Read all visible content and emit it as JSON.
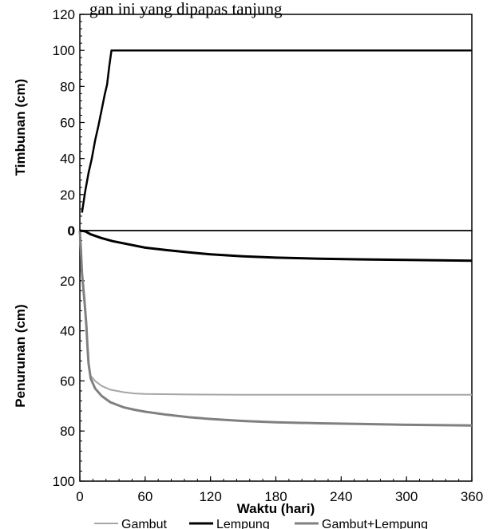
{
  "caption_fragment": "gan ini yang dipapas tanjung",
  "chart_data": [
    {
      "type": "line",
      "panel": "top",
      "ylabel": "Timbunan (cm)",
      "ylim": [
        0,
        120
      ],
      "yticks": [
        0,
        20,
        40,
        60,
        80,
        100,
        120
      ],
      "xlim": [
        0,
        360
      ],
      "series": [
        {
          "key": "timbunan",
          "color": "#000000",
          "x": [
            2,
            5,
            8,
            11,
            14,
            17,
            20,
            23,
            25,
            27,
            29,
            60,
            120,
            180,
            240,
            300,
            360
          ],
          "y": [
            10,
            22,
            32,
            40,
            50,
            58,
            67,
            76,
            81,
            91,
            100,
            100,
            100,
            100,
            100,
            100,
            100
          ]
        }
      ]
    },
    {
      "type": "line",
      "panel": "bottom",
      "ylabel": "Penurunan (cm)",
      "xlabel": "Waktu (hari)",
      "ylim": [
        0,
        100
      ],
      "y_inverted": true,
      "yticks": [
        0,
        20,
        40,
        60,
        80,
        100
      ],
      "xlim": [
        0,
        360
      ],
      "xticks": [
        0,
        60,
        120,
        180,
        240,
        300,
        360
      ],
      "legend": "bottom",
      "series": [
        {
          "name": "Gambut",
          "color": "#a6a6a6",
          "x": [
            0,
            1,
            2,
            3,
            4,
            5,
            6,
            7,
            8,
            10,
            14,
            20,
            28,
            40,
            50,
            60,
            100,
            150,
            200,
            300,
            360
          ],
          "y": [
            0,
            8,
            17,
            22,
            27,
            32,
            38,
            46,
            53,
            58,
            60,
            62,
            63.5,
            64.5,
            65,
            65.2,
            65.4,
            65.5,
            65.5,
            65.5,
            65.5
          ]
        },
        {
          "name": "Lempung",
          "color": "#000000",
          "x": [
            0,
            5,
            10,
            20,
            30,
            45,
            60,
            80,
            100,
            120,
            150,
            180,
            220,
            260,
            300,
            360
          ],
          "y": [
            0,
            0.3,
            1.5,
            3,
            4.2,
            5.5,
            6.8,
            7.8,
            8.7,
            9.5,
            10.3,
            10.8,
            11.2,
            11.5,
            11.7,
            12
          ]
        },
        {
          "name": "Gambut+Lempung",
          "color": "#808080",
          "x": [
            0,
            1,
            2,
            3,
            4,
            5,
            6,
            7,
            8,
            10,
            14,
            20,
            28,
            40,
            50,
            60,
            80,
            100,
            120,
            150,
            180,
            220,
            260,
            300,
            360
          ],
          "y": [
            0,
            8,
            17,
            22,
            27,
            32,
            38,
            46,
            53,
            59,
            63,
            66,
            68.5,
            70.5,
            71.5,
            72.3,
            73.5,
            74.5,
            75.2,
            76,
            76.5,
            76.9,
            77.2,
            77.5,
            77.8
          ]
        }
      ]
    }
  ]
}
